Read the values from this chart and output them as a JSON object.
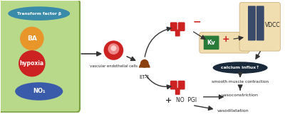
{
  "bg_color": "#ffffff",
  "box_fill": "#b8d98a",
  "box_edge": "#7aa040",
  "tf_fill": "#3a8aaa",
  "ba_fill": "#e8952a",
  "hypoxia_fill": "#cc2222",
  "no_fill": "#3a5aaa",
  "cell_fill": "#cc2222",
  "cell_inner": "#ee8888",
  "cell_center": "#ffcccc",
  "et1_fill": "#8B4010",
  "eta_fill": "#cc2222",
  "etb_fill": "#cc2222",
  "kv_fill": "#2a7a3a",
  "membrane_fill": "#f0ddb0",
  "membrane_edge": "#c8a870",
  "vdcc_fill": "#3a4a6a",
  "calcium_fill": "#1a2a3a",
  "arrow_color": "#333333",
  "text_color": "#222222",
  "labels": {
    "transform": "Transform factor β",
    "ba": "BA",
    "hypoxia": "hypoxia",
    "no1": "NO₁",
    "vascular": "vascular endothelial cells",
    "et1": "ET-1",
    "kv": "Kv",
    "vdcc": "VDCC",
    "calcium": "calcium influx↑",
    "smooth": "smooth muscle contraction",
    "vasoconstriction": "vasoconstriction",
    "no_pgi": "NO  PGI",
    "vasodilatation": "vasodilatation"
  },
  "figsize": [
    4.0,
    1.61
  ],
  "dpi": 100
}
